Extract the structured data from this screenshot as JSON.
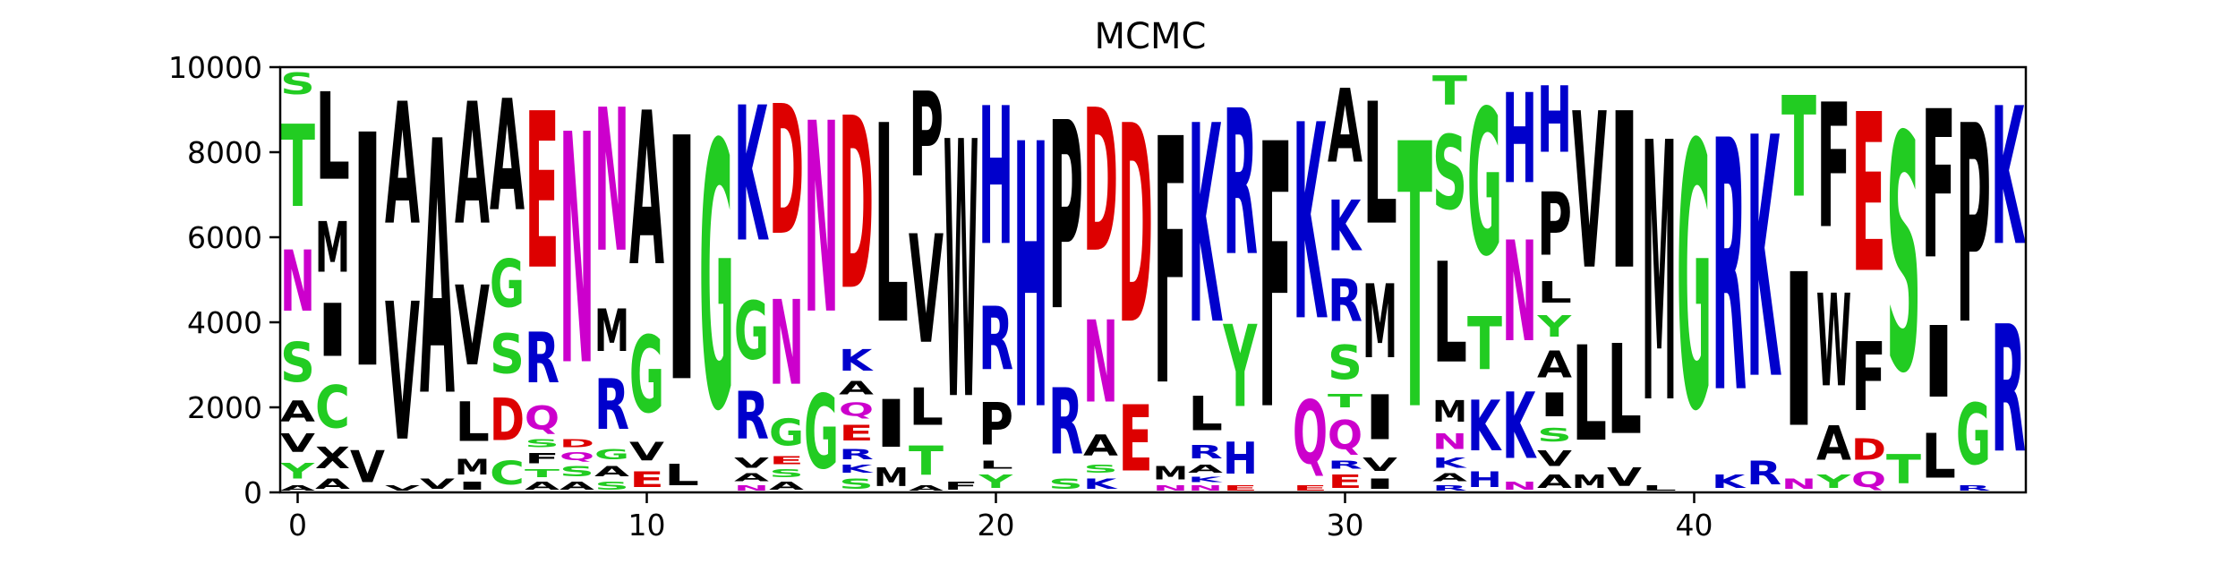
{
  "chart_data": {
    "type": "sequence-logo",
    "title": "MCMC",
    "xlabel": "",
    "ylabel": "",
    "xlim": [
      -0.5,
      49.5
    ],
    "ylim": [
      0,
      10000
    ],
    "x_ticks": [
      0,
      10,
      20,
      30,
      40
    ],
    "y_ticks": [
      0,
      2000,
      4000,
      6000,
      8000,
      10000
    ],
    "colors": {
      "hydrophobic": "#000000",
      "polar": "#22cc22",
      "acidic": "#dd0000",
      "basic": "#0000cc",
      "amide": "#cc00cc"
    },
    "letter_colors": {
      "A": "#000000",
      "V": "#000000",
      "L": "#000000",
      "I": "#000000",
      "M": "#000000",
      "F": "#000000",
      "W": "#000000",
      "P": "#000000",
      "X": "#000000",
      "G": "#22cc22",
      "S": "#22cc22",
      "T": "#22cc22",
      "Y": "#22cc22",
      "C": "#22cc22",
      "D": "#dd0000",
      "E": "#dd0000",
      "K": "#0000cc",
      "R": "#0000cc",
      "H": "#0000cc",
      "N": "#cc00cc",
      "Q": "#cc00cc"
    },
    "positions": [
      {
        "x": 0,
        "letters": [
          [
            "A",
            200
          ],
          [
            "Y",
            600
          ],
          [
            "V",
            700
          ],
          [
            "A",
            800
          ],
          [
            "S",
            1500
          ],
          [
            "N",
            2300
          ],
          [
            "T",
            3100
          ],
          [
            "S",
            800
          ]
        ]
      },
      {
        "x": 1,
        "letters": [
          [
            "A",
            400
          ],
          [
            "X",
            800
          ],
          [
            "C",
            1600
          ],
          [
            "I",
            2000
          ],
          [
            "M",
            1900
          ],
          [
            "L",
            3300
          ]
        ]
      },
      {
        "x": 2,
        "letters": [
          [
            "V",
            1200
          ],
          [
            "I",
            8800
          ]
        ]
      },
      {
        "x": 3,
        "letters": [
          [
            "V",
            200
          ],
          [
            "V",
            5200
          ],
          [
            "A",
            4600
          ]
        ]
      },
      {
        "x": 4,
        "letters": [
          [
            "V",
            400
          ],
          [
            "A",
            9600
          ]
        ]
      },
      {
        "x": 5,
        "letters": [
          [
            "I",
            300
          ],
          [
            "M",
            600
          ],
          [
            "L",
            1500
          ],
          [
            "V",
            3000
          ],
          [
            "A",
            4600
          ]
        ]
      },
      {
        "x": 6,
        "letters": [
          [
            "C",
            900
          ],
          [
            "D",
            1600
          ],
          [
            "S",
            1500
          ],
          [
            "G",
            1800
          ],
          [
            "A",
            4200
          ]
        ]
      },
      {
        "x": 7,
        "letters": [
          [
            "A",
            300
          ],
          [
            "T",
            300
          ],
          [
            "F",
            400
          ],
          [
            "S",
            300
          ],
          [
            "Q",
            900
          ],
          [
            "R",
            1900
          ],
          [
            "E",
            5900
          ]
        ]
      },
      {
        "x": 8,
        "letters": [
          [
            "A",
            300
          ],
          [
            "S",
            400
          ],
          [
            "Q",
            300
          ],
          [
            "D",
            300
          ],
          [
            "N",
            8700
          ]
        ]
      },
      {
        "x": 9,
        "letters": [
          [
            "S",
            300
          ],
          [
            "A",
            400
          ],
          [
            "G",
            400
          ],
          [
            "R",
            1900
          ],
          [
            "M",
            1600
          ],
          [
            "N",
            5400
          ]
        ]
      },
      {
        "x": 10,
        "letters": [
          [
            "E",
            600
          ],
          [
            "V",
            700
          ],
          [
            "G",
            2900
          ],
          [
            "A",
            5800
          ]
        ]
      },
      {
        "x": 11,
        "letters": [
          [
            "L",
            800
          ],
          [
            "I",
            9200
          ]
        ]
      },
      {
        "x": 12,
        "letters": [
          [
            "G",
            10000
          ]
        ]
      },
      {
        "x": 13,
        "letters": [
          [
            "N",
            200
          ],
          [
            "A",
            300
          ],
          [
            "V",
            400
          ],
          [
            "R",
            1800
          ],
          [
            "G",
            2200
          ],
          [
            "K",
            5100
          ]
        ]
      },
      {
        "x": 14,
        "letters": [
          [
            "A",
            300
          ],
          [
            "S",
            300
          ],
          [
            "E",
            300
          ],
          [
            "G",
            1000
          ],
          [
            "N",
            3200
          ],
          [
            "D",
            4900
          ]
        ]
      },
      {
        "x": 15,
        "letters": [
          [
            "G",
            2800
          ],
          [
            "N",
            7200
          ]
        ]
      },
      {
        "x": 16,
        "letters": [
          [
            "S",
            400
          ],
          [
            "K",
            300
          ],
          [
            "R",
            400
          ],
          [
            "E",
            600
          ],
          [
            "Q",
            500
          ],
          [
            "A",
            500
          ],
          [
            "K",
            800
          ],
          [
            "D",
            6500
          ]
        ]
      },
      {
        "x": 17,
        "letters": [
          [
            "M",
            700
          ],
          [
            "I",
            1800
          ],
          [
            "L",
            7500
          ]
        ]
      },
      {
        "x": 18,
        "letters": [
          [
            "A",
            200
          ],
          [
            "T",
            1100
          ],
          [
            "L",
            1400
          ],
          [
            "V",
            4100
          ],
          [
            "P",
            3200
          ]
        ]
      },
      {
        "x": 19,
        "letters": [
          [
            "F",
            300
          ],
          [
            "W",
            9700
          ]
        ]
      },
      {
        "x": 20,
        "letters": [
          [
            "Y",
            500
          ],
          [
            "L",
            300
          ],
          [
            "P",
            1600
          ],
          [
            "R",
            2400
          ],
          [
            "H",
            5200
          ]
        ]
      },
      {
        "x": 21,
        "letters": [
          [
            "H",
            10000
          ]
        ]
      },
      {
        "x": 22,
        "letters": [
          [
            "S",
            400
          ],
          [
            "R",
            2500
          ],
          [
            "P",
            7100
          ]
        ]
      },
      {
        "x": 23,
        "letters": [
          [
            "K",
            400
          ],
          [
            "S",
            300
          ],
          [
            "A",
            800
          ],
          [
            "N",
            3100
          ],
          [
            "D",
            5400
          ]
        ]
      },
      {
        "x": 24,
        "letters": [
          [
            "E",
            2500
          ],
          [
            "D",
            7500
          ]
        ]
      },
      {
        "x": 25,
        "letters": [
          [
            "N",
            200
          ],
          [
            "M",
            500
          ],
          [
            "F",
            9300
          ]
        ]
      },
      {
        "x": 26,
        "letters": [
          [
            "N",
            200
          ],
          [
            "K",
            200
          ],
          [
            "A",
            300
          ],
          [
            "R",
            500
          ],
          [
            "L",
            1300
          ],
          [
            "K",
            7500
          ]
        ]
      },
      {
        "x": 27,
        "letters": [
          [
            "E",
            200
          ],
          [
            "H",
            1200
          ],
          [
            "Y",
            3100
          ],
          [
            "R",
            5500
          ]
        ]
      },
      {
        "x": 28,
        "letters": [
          [
            "F",
            10000
          ]
        ]
      },
      {
        "x": 29,
        "letters": [
          [
            "E",
            200
          ],
          [
            "Q",
            2400
          ],
          [
            "K",
            7400
          ]
        ]
      },
      {
        "x": 30,
        "letters": [
          [
            "E",
            500
          ],
          [
            "R",
            300
          ],
          [
            "Q",
            1100
          ],
          [
            "T",
            500
          ],
          [
            "S",
            1300
          ],
          [
            "R",
            1600
          ],
          [
            "K",
            1900
          ],
          [
            "A",
            2800
          ]
        ]
      },
      {
        "x": 31,
        "letters": [
          [
            "I",
            400
          ],
          [
            "V",
            500
          ],
          [
            "I",
            1700
          ],
          [
            "M",
            2800
          ],
          [
            "L",
            4600
          ]
        ]
      },
      {
        "x": 32,
        "letters": [
          [
            "T",
            10000
          ]
        ]
      },
      {
        "x": 33,
        "letters": [
          [
            "R",
            200
          ],
          [
            "A",
            300
          ],
          [
            "K",
            400
          ],
          [
            "N",
            600
          ],
          [
            "M",
            800
          ],
          [
            "L",
            3800
          ],
          [
            "S",
            2800
          ],
          [
            "T",
            1100
          ]
        ]
      },
      {
        "x": 34,
        "letters": [
          [
            "H",
            600
          ],
          [
            "K",
            1900
          ],
          [
            "T",
            2000
          ],
          [
            "G",
            5500
          ]
        ]
      },
      {
        "x": 35,
        "letters": [
          [
            "N",
            300
          ],
          [
            "K",
            2500
          ],
          [
            "N",
            3800
          ],
          [
            "H",
            3400
          ]
        ]
      },
      {
        "x": 36,
        "letters": [
          [
            "A",
            500
          ],
          [
            "V",
            600
          ],
          [
            "S",
            500
          ],
          [
            "I",
            900
          ],
          [
            "A",
            1000
          ],
          [
            "Y",
            800
          ],
          [
            "L",
            800
          ],
          [
            "P",
            2400
          ],
          [
            "H",
            2500
          ]
        ]
      },
      {
        "x": 37,
        "letters": [
          [
            "M",
            500
          ],
          [
            "L",
            3600
          ],
          [
            "V",
            5900
          ]
        ]
      },
      {
        "x": 38,
        "letters": [
          [
            "V",
            700
          ],
          [
            "L",
            3400
          ],
          [
            "I",
            5900
          ]
        ]
      },
      {
        "x": 39,
        "letters": [
          [
            "L",
            200
          ],
          [
            "M",
            9800
          ]
        ]
      },
      {
        "x": 40,
        "letters": [
          [
            "G",
            10000
          ]
        ]
      },
      {
        "x": 41,
        "letters": [
          [
            "K",
            500
          ],
          [
            "R",
            9500
          ]
        ]
      },
      {
        "x": 42,
        "letters": [
          [
            "R",
            900
          ],
          [
            "K",
            9100
          ]
        ]
      },
      {
        "x": 43,
        "letters": [
          [
            "N",
            400
          ],
          [
            "I",
            5800
          ],
          [
            "T",
            3800
          ]
        ]
      },
      {
        "x": 44,
        "letters": [
          [
            "Y",
            500
          ],
          [
            "A",
            1300
          ],
          [
            "W",
            3500
          ],
          [
            "F",
            4700
          ]
        ]
      },
      {
        "x": 45,
        "letters": [
          [
            "Q",
            600
          ],
          [
            "D",
            800
          ],
          [
            "F",
            2600
          ],
          [
            "E",
            6000
          ]
        ]
      },
      {
        "x": 46,
        "letters": [
          [
            "T",
            1100
          ],
          [
            "S",
            8900
          ]
        ]
      },
      {
        "x": 47,
        "letters": [
          [
            "L",
            1700
          ],
          [
            "I",
            2700
          ],
          [
            "F",
            5600
          ]
        ]
      },
      {
        "x": 48,
        "letters": [
          [
            "R",
            200
          ],
          [
            "G",
            2300
          ],
          [
            "P",
            7500
          ]
        ]
      },
      {
        "x": 49,
        "letters": [
          [
            "R",
            4800
          ],
          [
            "K",
            5200
          ]
        ]
      }
    ]
  }
}
